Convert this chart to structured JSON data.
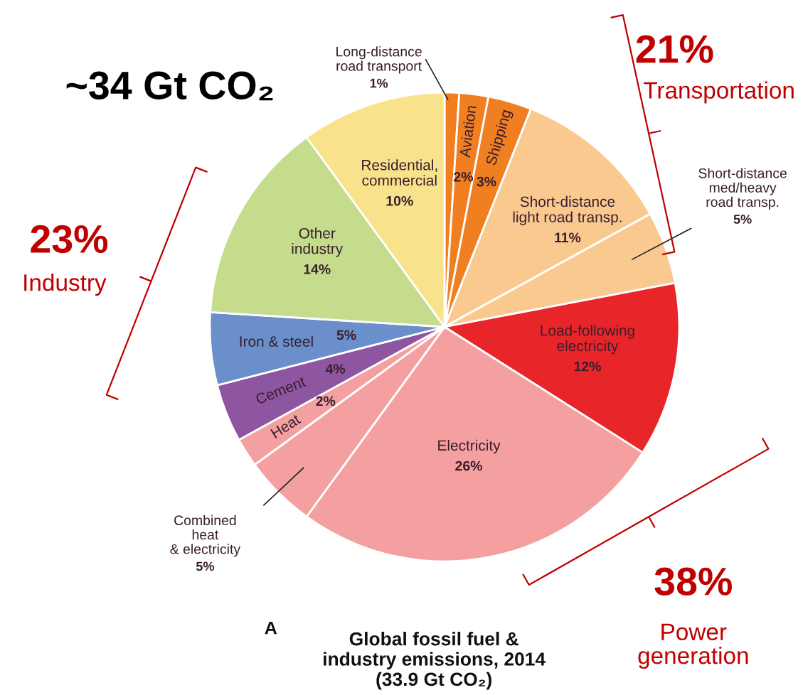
{
  "chart_data": {
    "type": "pie",
    "title": "Global fossil fuel &\nindustry emissions, 2014\n(33.9 Gt CO₂)",
    "categories": [
      "Long-distance\nroad transport",
      "Aviation",
      "Shipping",
      "Short-distance\nlight road transp.",
      "Short-distance\nmed/heavy\nroad transp.",
      "Load-following\nelectricity",
      "Electricity",
      "Combined\nheat\n& electricity",
      "Heat",
      "Cement",
      "Iron & steel",
      "Other\nindustry",
      "Residential,\ncommercial"
    ],
    "values": [
      1,
      2,
      3,
      11,
      5,
      12,
      26,
      5,
      2,
      4,
      5,
      14,
      10
    ],
    "colors": [
      "#f07f22",
      "#f07f22",
      "#f07f22",
      "#f9c98f",
      "#f9c98f",
      "#e8262a",
      "#f4a0a0",
      "#f4a0a0",
      "#f4a0a0",
      "#8e56a0",
      "#6a8fca",
      "#c4dc8c",
      "#f8e38c"
    ],
    "value_labels": [
      "1%",
      "2%",
      "3%",
      "11%",
      "5%",
      "12%",
      "26%",
      "5%",
      "2%",
      "4%",
      "5%",
      "14%",
      "10%"
    ],
    "annotations": [
      "~34 Gt CO₂",
      "21%",
      "Transportation",
      "23%",
      "Industry",
      "38%",
      "Power\ngeneration",
      "A"
    ],
    "legend": false
  }
}
